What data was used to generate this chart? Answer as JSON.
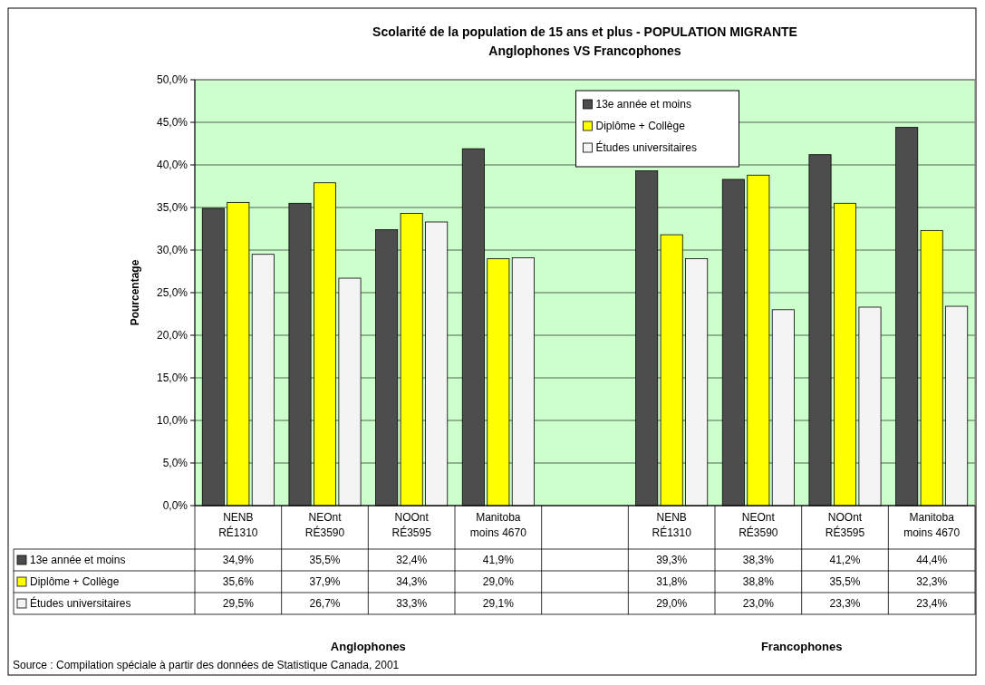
{
  "chart_data": {
    "type": "bar",
    "title": "Scolarité de la population de 15 ans et plus - POPULATION MIGRANTE",
    "subtitle": "Anglophones VS Francophones",
    "ylabel": "Pourcentage",
    "categories": [
      "NENB RÉ1310",
      "NEOnt RÉ3590",
      "NOOnt RÉ3595",
      "Manitoba moins 4670",
      null,
      "NENB RÉ1310",
      "NEOnt RÉ3590",
      "NOOnt RÉ3595",
      "Manitoba moins 4670"
    ],
    "series": [
      {
        "name": "13e année et moins",
        "color": "#4d4d4d",
        "values": [
          34.9,
          35.5,
          32.4,
          41.9,
          null,
          39.3,
          38.3,
          41.2,
          44.4
        ],
        "value_labels": [
          "34,9%",
          "35,5%",
          "32,4%",
          "41,9%",
          null,
          "39,3%",
          "38,3%",
          "41,2%",
          "44,4%"
        ]
      },
      {
        "name": "Diplôme + Collège",
        "color": "#ffff00",
        "values": [
          35.6,
          37.9,
          34.3,
          29.0,
          null,
          31.8,
          38.8,
          35.5,
          32.3
        ],
        "value_labels": [
          "35,6%",
          "37,9%",
          "34,3%",
          "29,0%",
          null,
          "31,8%",
          "38,8%",
          "35,5%",
          "32,3%"
        ]
      },
      {
        "name": "Études universitaires",
        "color": "#f4f4f4",
        "values": [
          29.5,
          26.7,
          33.3,
          29.1,
          null,
          29.0,
          23.0,
          23.3,
          23.4
        ],
        "value_labels": [
          "29,5%",
          "26,7%",
          "33,3%",
          "29,1%",
          null,
          "29,0%",
          "23,0%",
          "23,3%",
          "23,4%"
        ]
      }
    ],
    "ylim": [
      0,
      50
    ],
    "yticks": [
      {
        "value": 0,
        "label": "0,0%"
      },
      {
        "value": 5,
        "label": "5,0%"
      },
      {
        "value": 10,
        "label": "10,0%"
      },
      {
        "value": 15,
        "label": "15,0%"
      },
      {
        "value": 20,
        "label": "20,0%"
      },
      {
        "value": 25,
        "label": "25,0%"
      },
      {
        "value": 30,
        "label": "30,0%"
      },
      {
        "value": 35,
        "label": "35,0%"
      },
      {
        "value": 40,
        "label": "40,0%"
      },
      {
        "value": 45,
        "label": "45,0%"
      },
      {
        "value": 50,
        "label": "50,0%"
      }
    ],
    "grid": "y",
    "legend": "top",
    "annotations": [
      "Anglophones",
      "Francophones",
      "Source : Compilation spéciale à partir des données de Statistique Canada, 2001"
    ]
  }
}
